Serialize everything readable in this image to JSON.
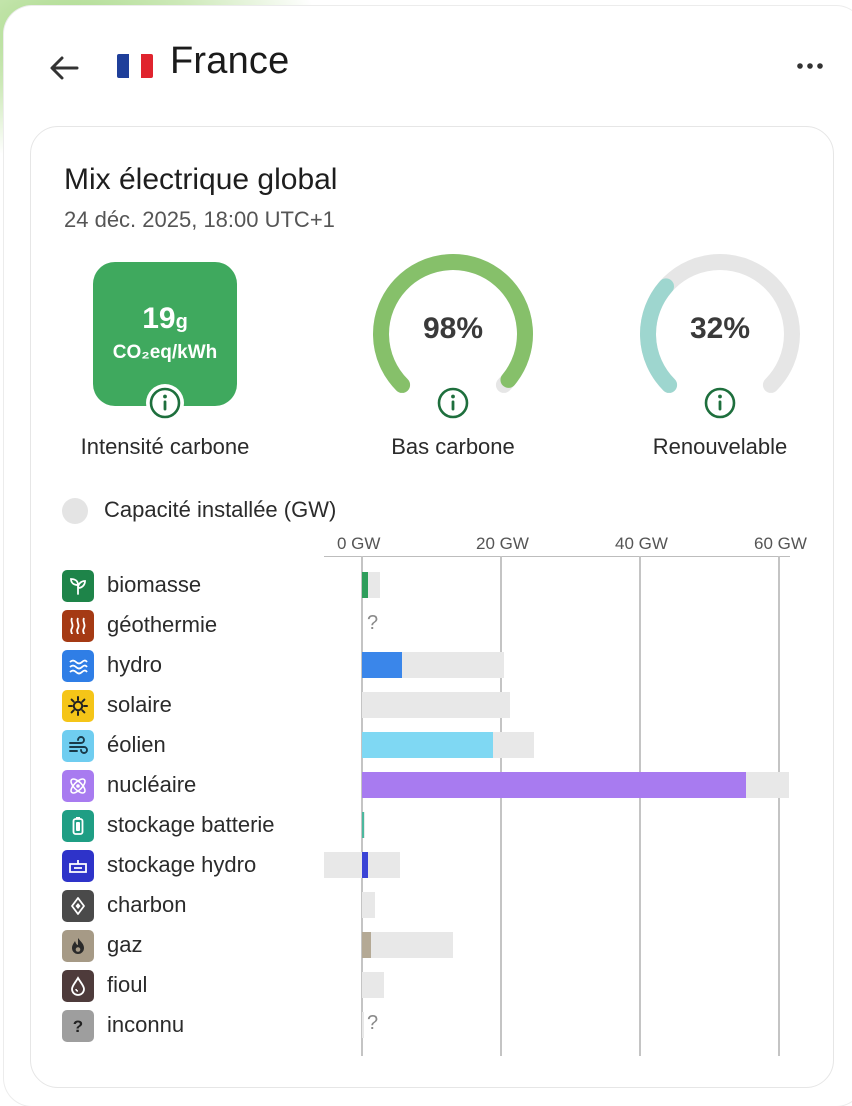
{
  "header": {
    "country": "France",
    "flag_colors": [
      "#1f3f9a",
      "#ffffff",
      "#e0242e"
    ]
  },
  "card": {
    "title": "Mix électrique global",
    "datetime": "24 déc. 2025, 18:00 UTC+1"
  },
  "metrics": {
    "carbon_intensity": {
      "value": "19",
      "value_unit": "g",
      "unit": "CO₂eq/kWh",
      "label": "Intensité carbone",
      "color": "#3fa95e"
    },
    "low_carbon": {
      "value": "98%",
      "fraction": 0.98,
      "label": "Bas carbone",
      "color": "#86c06a"
    },
    "renewable": {
      "value": "32%",
      "fraction": 0.32,
      "label": "Renouvelable",
      "color": "#9ed6cf"
    }
  },
  "capacity_toggle": {
    "label": "Capacité installée (GW)",
    "checked": false
  },
  "chart_data": {
    "type": "bar",
    "xlabel": "",
    "ticks": [
      "0 GW",
      "20 GW",
      "40 GW",
      "60 GW"
    ],
    "tick_values": [
      0,
      20,
      40,
      60
    ],
    "xlim": [
      -5.5,
      62
    ],
    "categories": [
      "biomasse",
      "géothermie",
      "hydro",
      "solaire",
      "éolien",
      "nucléaire",
      "stockage batterie",
      "stockage hydro",
      "charbon",
      "gaz",
      "fioul",
      "inconnu"
    ],
    "series": [
      {
        "values": [
          0.9,
          null,
          5.7,
          0,
          18.8,
          55.2,
          0.3,
          0.9,
          0,
          1.3,
          0,
          0
        ]
      },
      {
        "values": [
          2.6,
          null,
          20.5,
          21.3,
          24.7,
          61.4,
          0.5,
          5.5,
          1.8,
          13.1,
          3.1,
          0
        ]
      }
    ],
    "capacity_min": [
      0,
      null,
      0,
      0,
      0,
      0,
      0,
      -5.5,
      0,
      0,
      0,
      0
    ],
    "unknown_marker": "?"
  },
  "sources": [
    {
      "name": "biomasse",
      "icon": "leaf-icon",
      "color": "#1e8449",
      "bar_color": "#2e9d5b"
    },
    {
      "name": "géothermie",
      "icon": "heat-waves-icon",
      "color": "#a53a14",
      "bar_color": "#a53a14"
    },
    {
      "name": "hydro",
      "icon": "water-waves-icon",
      "color": "#2f7ee6",
      "bar_color": "#3a86ea"
    },
    {
      "name": "solaire",
      "icon": "sun-icon",
      "color": "#f5c518",
      "bar_color": "#f5c518"
    },
    {
      "name": "éolien",
      "icon": "wind-icon",
      "color": "#6fcdf0",
      "bar_color": "#7fd8f3"
    },
    {
      "name": "nucléaire",
      "icon": "atom-icon",
      "color": "#a87bf0",
      "bar_color": "#a87bf0"
    },
    {
      "name": "stockage batterie",
      "icon": "battery-icon",
      "color": "#1f9e84",
      "bar_color": "#4bb89e"
    },
    {
      "name": "stockage hydro",
      "icon": "dam-icon",
      "color": "#2e33c9",
      "bar_color": "#3b44d6"
    },
    {
      "name": "charbon",
      "icon": "coal-icon",
      "color": "#4a4a4a",
      "bar_color": "#555555"
    },
    {
      "name": "gaz",
      "icon": "flame-icon",
      "color": "#a69a86",
      "bar_color": "#b4a995"
    },
    {
      "name": "fioul",
      "icon": "oil-drop-icon",
      "color": "#4e3b3b",
      "bar_color": "#5a4545"
    },
    {
      "name": "inconnu",
      "icon": "question-icon",
      "color": "#9e9e9e",
      "bar_color": "#9e9e9e"
    }
  ]
}
